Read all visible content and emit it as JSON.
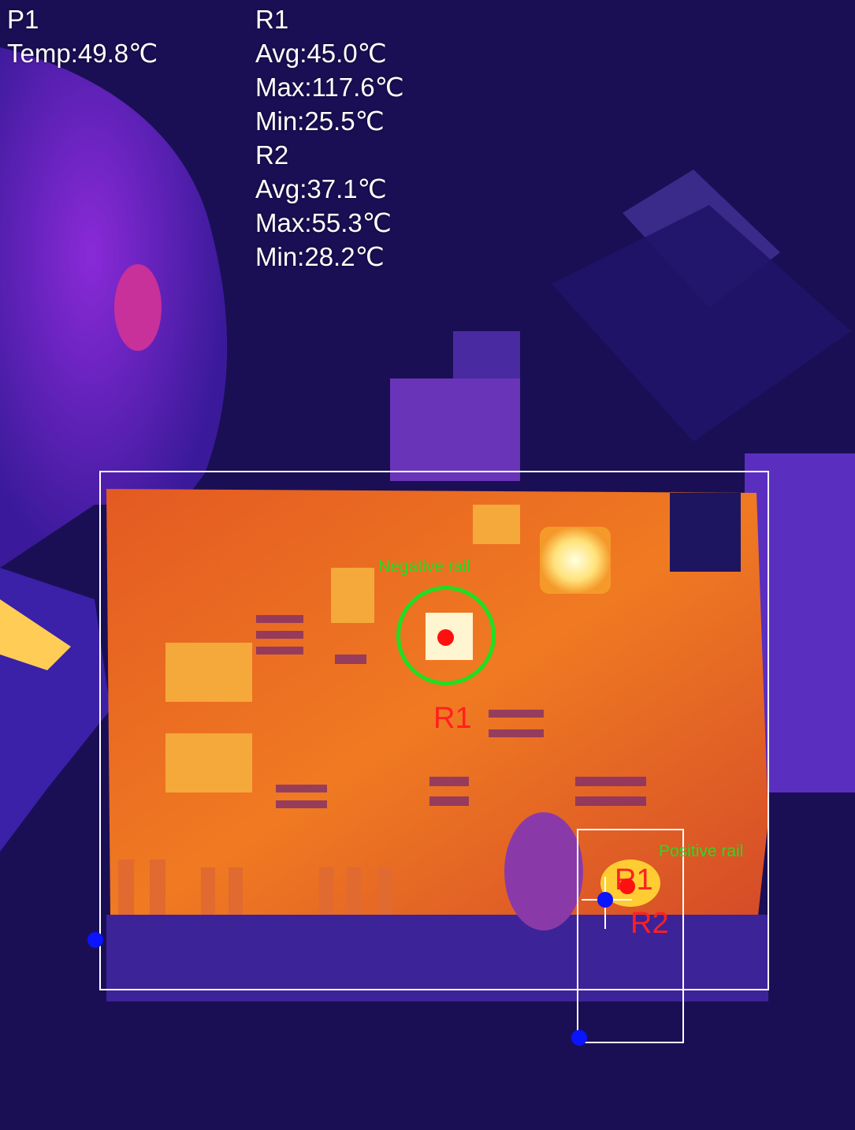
{
  "p1": {
    "name": "P1",
    "temp": "Temp:49.8℃"
  },
  "r1": {
    "name": "R1",
    "avg": "Avg:45.0℃",
    "max": "Max:117.6℃",
    "min": "Min:25.5℃"
  },
  "r2": {
    "name": "R2",
    "avg": "Avg:37.1℃",
    "max": "Max:55.3℃",
    "min": "Min:28.2℃"
  },
  "annotations": {
    "negative_rail": "Negative rail",
    "positive_rail": "Positive rail",
    "label_r1": "R1",
    "label_r1_small": "R1",
    "label_r2": "R2"
  },
  "palette": {
    "background": "#1a0f55",
    "board": "#e8641e",
    "hot": "#fff2a0",
    "marker": "#ff1010",
    "anchor": "#0a14ff",
    "ring": "#22dd22"
  }
}
